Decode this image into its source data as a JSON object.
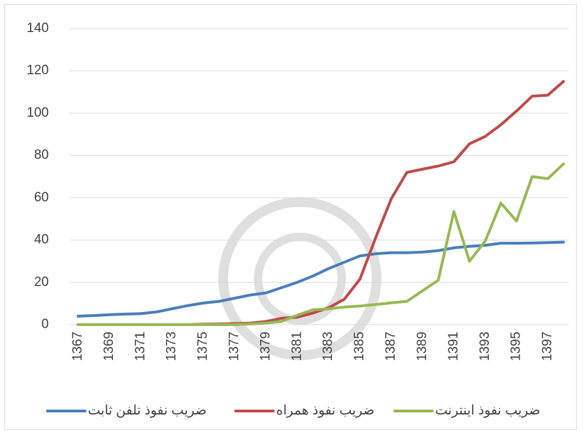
{
  "chart_data": {
    "type": "line",
    "categories": [
      "1367",
      null,
      "1369",
      null,
      "1371",
      null,
      "1373",
      null,
      "1375",
      null,
      "1377",
      null,
      "1379",
      null,
      "1381",
      null,
      "1383",
      null,
      "1385",
      null,
      "1387",
      null,
      "1389",
      null,
      "1391",
      null,
      "1393",
      null,
      "1395",
      null,
      "1397",
      null
    ],
    "series": [
      {
        "name": "ضریب نفوذ تلفن ثابت",
        "color": "#4a7ebb",
        "values": [
          4,
          4.3,
          4.7,
          5,
          5.2,
          6,
          7.5,
          9,
          10.2,
          11,
          12.5,
          14,
          15,
          17.5,
          20,
          23,
          26.5,
          29.5,
          32.5,
          33.5,
          34,
          34,
          34.3,
          35,
          36.3,
          37,
          37.5,
          38.5,
          38.5,
          38.6,
          38.8,
          39
        ]
      },
      {
        "name": "ضریب نفوذ همراه",
        "color": "#be4b48",
        "values": [
          0,
          0,
          0,
          0,
          0,
          0,
          0,
          0,
          0.2,
          0.3,
          0.5,
          0.7,
          1.5,
          3,
          3.5,
          5.5,
          8,
          12,
          21.5,
          41,
          59.5,
          72,
          73.5,
          75,
          77,
          85.5,
          89,
          94.5,
          101,
          108,
          108.5,
          115
        ]
      },
      {
        "name": "ضریب نفوذ اینترنت",
        "color": "#98b954",
        "values": [
          0,
          0,
          0,
          0,
          0,
          0,
          0,
          0,
          0,
          0,
          0,
          0.3,
          0.8,
          1.5,
          4.5,
          7,
          7.5,
          8.3,
          8.8,
          9.5,
          10.3,
          11,
          16,
          21,
          53.5,
          30,
          39.5,
          57.5,
          49,
          70,
          69,
          76
        ]
      }
    ],
    "ylim": [
      0,
      140
    ],
    "yticks": [
      0,
      20,
      40,
      60,
      80,
      100,
      120,
      140
    ],
    "grid": true
  }
}
